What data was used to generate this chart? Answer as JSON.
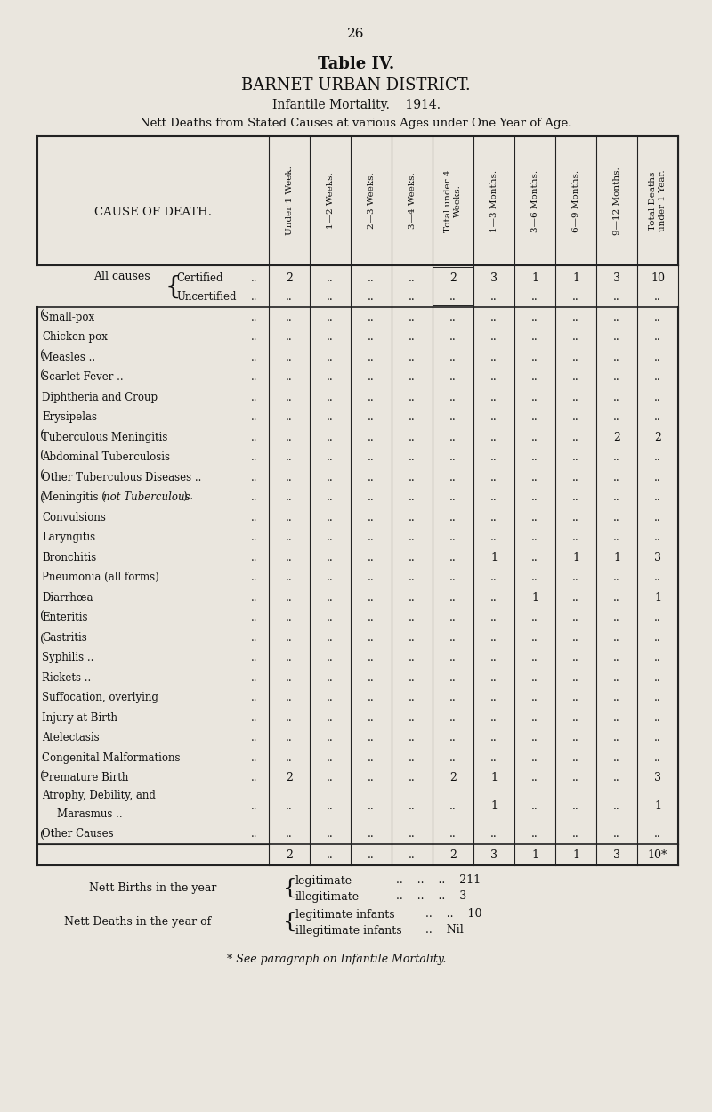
{
  "page_number": "26",
  "title1": "Table IV.",
  "title2": "BARNET URBAN DISTRICT.",
  "title3": "Infantile Mortality.    1914.",
  "title4": "Nett Deaths from Stated Causes at various Ages under One Year of Age.",
  "col_headers": [
    "Under 1 Week.",
    "1—2 Weeks.",
    "2—3 Weeks.",
    "3—4 Weeks.",
    "Total under 4\nWeeks.",
    "1—3 Months.",
    "3—6 Months.",
    "6—9 Months.",
    "9—12 Months.",
    "Total Deaths\nunder 1 Year."
  ],
  "all_causes_certified": [
    "2",
    "..",
    "..",
    "..",
    "2",
    "3",
    "1",
    "1",
    "3",
    "10"
  ],
  "all_causes_uncertified": [
    "..",
    "..",
    "..",
    "..",
    "..",
    "..",
    "..",
    "..",
    "..",
    ".."
  ],
  "disease_rows": [
    {
      "cause": "Small-pox",
      "dots": "..",
      "data": [
        "..",
        "..",
        "..",
        "..",
        "..",
        "..",
        "..",
        "..",
        "..",
        ".."
      ],
      "bracket": "open"
    },
    {
      "cause": "Chicken-pox",
      "dots": "..",
      "data": [
        "..",
        "..",
        "..",
        "..",
        "..",
        "..",
        "..",
        "..",
        "..",
        ".."
      ],
      "bracket": "mid"
    },
    {
      "cause": "Measles ..",
      "dots": "..",
      "data": [
        "..",
        "..",
        "..",
        "..",
        "..",
        "..",
        "..",
        "..",
        "..",
        ".."
      ],
      "bracket": "open"
    },
    {
      "cause": "Scarlet Fever ..",
      "dots": "..",
      "data": [
        "..",
        "..",
        "..",
        "..",
        "..",
        "..",
        "..",
        "..",
        "..",
        ".."
      ],
      "bracket": "open"
    },
    {
      "cause": "Diphtheria and Croup",
      "dots": "..",
      "data": [
        "..",
        "..",
        "..",
        "..",
        "..",
        "..",
        "..",
        "..",
        "..",
        ".."
      ],
      "bracket": "mid"
    },
    {
      "cause": "Erysipelas",
      "dots": "..",
      "data": [
        "..",
        "..",
        "..",
        "..",
        "..",
        "..",
        "..",
        "..",
        "..",
        ".."
      ],
      "bracket": "none"
    },
    {
      "cause": "Tuberculous Meningitis",
      "dots": "..",
      "data": [
        "..",
        "..",
        "..",
        "..",
        "..",
        "..",
        "..",
        "..",
        "2",
        "2"
      ],
      "bracket": "open"
    },
    {
      "cause": "Abdominal Tuberculosis",
      "dots": "..",
      "data": [
        "..",
        "..",
        "..",
        "..",
        "..",
        "..",
        "..",
        "..",
        "..",
        ".."
      ],
      "bracket": "open"
    },
    {
      "cause": "Other Tuberculous Diseases ..",
      "dots": "..",
      "data": [
        "..",
        "..",
        "..",
        "..",
        "..",
        "..",
        "..",
        "..",
        "..",
        ".."
      ],
      "bracket": "open"
    },
    {
      "cause": "Meningitis (not Tuberculous)..",
      "dots": "..",
      "data": [
        "..",
        "..",
        "..",
        "..",
        "..",
        "..",
        "..",
        "..",
        "..",
        ".."
      ],
      "bracket": "close",
      "italic_part": "not Tuberculous"
    },
    {
      "cause": "Convulsions",
      "dots": "..",
      "data": [
        "..",
        "..",
        "..",
        "..",
        "..",
        "..",
        "..",
        "..",
        "..",
        ".."
      ],
      "bracket": "none"
    },
    {
      "cause": "Laryngitis",
      "dots": "..",
      "data": [
        "..",
        "..",
        "..",
        "..",
        "..",
        "..",
        "..",
        "..",
        "..",
        ".."
      ],
      "bracket": "none"
    },
    {
      "cause": "Bronchitis",
      "dots": "..",
      "data": [
        "..",
        "..",
        "..",
        "..",
        "..",
        "1",
        "..",
        "1",
        "1",
        "3"
      ],
      "bracket": "none"
    },
    {
      "cause": "Pneumonia (all forms)",
      "dots": "..",
      "data": [
        "..",
        "..",
        "..",
        "..",
        "..",
        "..",
        "..",
        "..",
        "..",
        ".."
      ],
      "bracket": "none"
    },
    {
      "cause": "Diarrhœa",
      "dots": "..",
      "data": [
        "..",
        "..",
        "..",
        "..",
        "..",
        "..",
        "1",
        "..",
        "..",
        "1"
      ],
      "bracket": "none"
    },
    {
      "cause": "Enteritis",
      "dots": "..",
      "data": [
        "..",
        "..",
        "..",
        "..",
        "..",
        "..",
        "..",
        "..",
        "..",
        ".."
      ],
      "bracket": "open"
    },
    {
      "cause": "Gastritis",
      "dots": "..",
      "data": [
        "..",
        "..",
        "..",
        "..",
        "..",
        "..",
        "..",
        "..",
        "..",
        ".."
      ],
      "bracket": "close"
    },
    {
      "cause": "Syphilis ..",
      "dots": "..",
      "data": [
        "..",
        "..",
        "..",
        "..",
        "..",
        "..",
        "..",
        "..",
        "..",
        ".."
      ],
      "bracket": "none"
    },
    {
      "cause": "Rickets ..",
      "dots": "..",
      "data": [
        "..",
        "..",
        "..",
        "..",
        "..",
        "..",
        "..",
        "..",
        "..",
        ".."
      ],
      "bracket": "none"
    },
    {
      "cause": "Suffocation, overlying",
      "dots": "..",
      "data": [
        "..",
        "..",
        "..",
        "..",
        "..",
        "..",
        "..",
        "..",
        "..",
        ".."
      ],
      "bracket": "none"
    },
    {
      "cause": "Injury at Birth",
      "dots": "..",
      "data": [
        "..",
        "..",
        "..",
        "..",
        "..",
        "..",
        "..",
        "..",
        "..",
        ".."
      ],
      "bracket": "none"
    },
    {
      "cause": "Atelectasis",
      "dots": "..",
      "data": [
        "..",
        "..",
        "..",
        "..",
        "..",
        "..",
        "..",
        "..",
        "..",
        ".."
      ],
      "bracket": "none"
    },
    {
      "cause": "Congenital Malformations",
      "dots": "..",
      "data": [
        "..",
        "..",
        "..",
        "..",
        "..",
        "..",
        "..",
        "..",
        "..",
        ".."
      ],
      "bracket": "none"
    },
    {
      "cause": "Premature Birth",
      "dots": "..",
      "data": [
        "2",
        "..",
        "..",
        "..",
        "2",
        "1",
        "..",
        "..",
        "..",
        "3"
      ],
      "bracket": "open"
    },
    {
      "cause": "Atrophy, Debility, and\n    Marasmus ..",
      "dots": "..",
      "data": [
        "..",
        "..",
        "..",
        "..",
        "..",
        "1",
        "..",
        "..",
        "..",
        "1"
      ],
      "bracket": "mid",
      "two_line": true
    },
    {
      "cause": "Other Causes",
      "dots": "..",
      "data": [
        "..",
        "..",
        "..",
        "..",
        "..",
        "..",
        "..",
        "..",
        "..",
        ".."
      ],
      "bracket": "close"
    }
  ],
  "footer_row": [
    "2",
    "..",
    "..",
    "..",
    "2",
    "3",
    "1",
    "1",
    "3",
    "10*"
  ],
  "bg_color": "#eae6de",
  "line_color": "#222222",
  "text_color": "#111111"
}
